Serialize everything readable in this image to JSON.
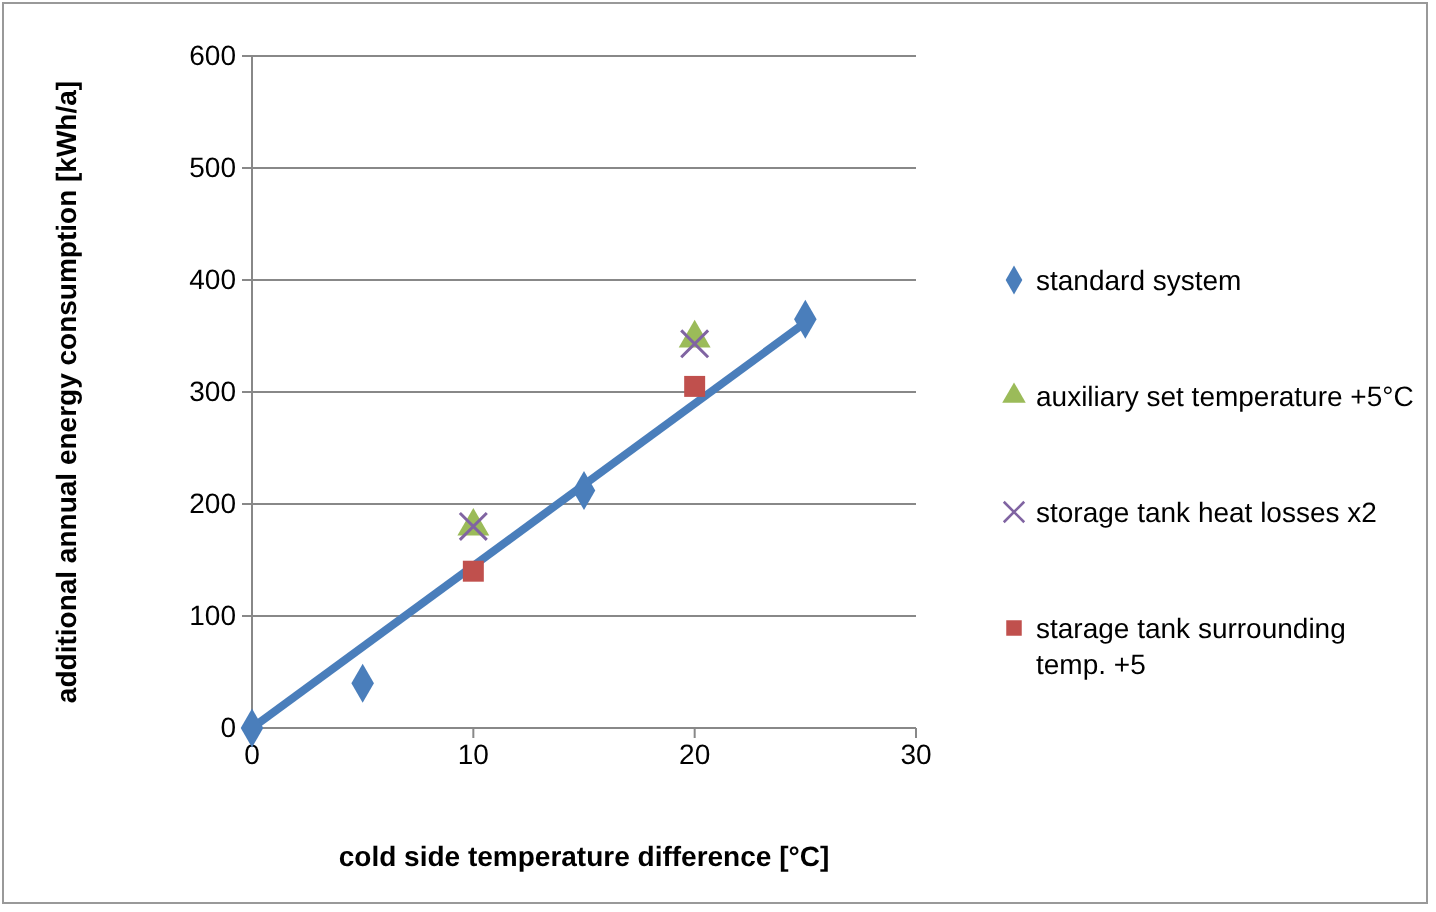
{
  "chart_data": {
    "type": "scatter",
    "xlabel": "cold side temperature difference [°C]",
    "ylabel": "additional annual energy consumption [kWh/a]",
    "xlim": [
      0,
      30
    ],
    "xticks": [
      0,
      10,
      20,
      30
    ],
    "ylim": [
      0,
      600
    ],
    "yticks": [
      0,
      100,
      200,
      300,
      400,
      500,
      600
    ],
    "grid": "y",
    "legend": "right",
    "series": [
      {
        "name": "standard system",
        "color": "#4a7ebb",
        "marker": "diamond",
        "x": [
          0,
          5,
          15,
          25
        ],
        "values": [
          0,
          40,
          212,
          365
        ]
      },
      {
        "name": "auxiliary set temperature +5°C",
        "color": "#9bbb59",
        "marker": "triangle",
        "x": [
          10,
          20
        ],
        "values": [
          180,
          348
        ]
      },
      {
        "name": "storage tank heat losses x2",
        "color": "#8064a2",
        "marker": "cross",
        "x": [
          10,
          20
        ],
        "values": [
          180,
          343
        ]
      },
      {
        "name": "starage tank surrounding temp. +5",
        "color": "#c0504d",
        "marker": "square",
        "x": [
          10,
          20
        ],
        "values": [
          140,
          305
        ]
      },
      {
        "type": "line",
        "color": "#4a7ebb",
        "x": [
          0,
          25
        ],
        "values": [
          0,
          362
        ]
      }
    ]
  }
}
